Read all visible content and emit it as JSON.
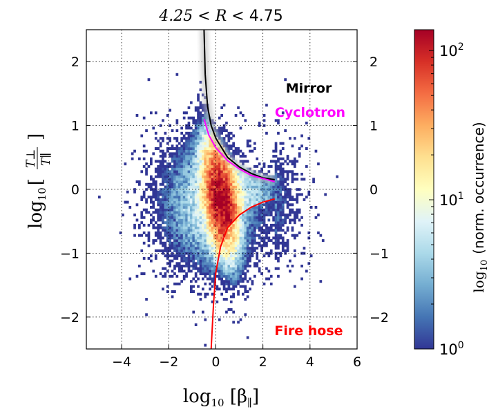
{
  "chart_data": {
    "type": "heatmap",
    "title_prefix": "4.25 < R <",
    "title_value": "4.75",
    "xlabel": "log10 [β∥]",
    "xlabel_parts": {
      "fn": "log",
      "sub": "10",
      "body": "[β",
      "body_sub": "∥",
      "close": "]"
    },
    "ylabel_parts": {
      "fn": "log",
      "sub": "10",
      "num": "T⊥",
      "den": "T∥"
    },
    "xlim": [
      -5.5,
      6
    ],
    "ylim": [
      -2.5,
      2.5
    ],
    "xticks": [
      -4,
      -2,
      0,
      2,
      4,
      6
    ],
    "xtick_labels": [
      "−4",
      "−2",
      "0",
      "2",
      "4",
      "6"
    ],
    "yticks": [
      2,
      1,
      0,
      -1,
      -2
    ],
    "ytick_labels": [
      "2",
      "1",
      "0",
      "−1",
      "−2"
    ],
    "grid": true,
    "colorbar": {
      "label": "log10 (norm. occurrence)",
      "label_fn": "log",
      "label_sub": "10",
      "label_rest": "(norm. occurrence)",
      "scale": "log",
      "range": [
        1,
        138
      ],
      "ticks": [
        1,
        10,
        100
      ],
      "tick_bases": [
        "10",
        "10",
        "10"
      ],
      "tick_exps": [
        "0",
        "1",
        "2"
      ],
      "colormap": [
        "#313695",
        "#4575b4",
        "#74add1",
        "#abd9e9",
        "#e0f3f8",
        "#ffffbf",
        "#fee090",
        "#fdae61",
        "#f46d43",
        "#d73027",
        "#a50026"
      ]
    },
    "heatmap_model": {
      "bin_x": 0.1,
      "bin_y": 0.04,
      "core": {
        "center": [
          0.25,
          -0.2
        ],
        "peak": 140,
        "axis": [
          0.55,
          -0.83
        ],
        "sigma_along": 0.5,
        "sigma_perp": 0.3
      },
      "halo": {
        "center": [
          0.25,
          -0.2
        ],
        "peak": 8,
        "sigma_x": 1.3,
        "sigma_y": 0.55
      },
      "seed": 7
    },
    "curves": [
      {
        "name": "Mirror",
        "color": "#000000",
        "x": [
          -0.5,
          -0.45,
          -0.35,
          -0.2,
          0,
          0.5,
          1,
          1.5,
          2,
          2.5
        ],
        "y": [
          2.5,
          1.8,
          1.3,
          1.0,
          0.8,
          0.5,
          0.35,
          0.25,
          0.18,
          0.15
        ]
      },
      {
        "name": "Cyclotron",
        "color": "#ff00ff",
        "x": [
          -0.5,
          -0.3,
          0,
          0.5,
          1,
          1.5,
          2,
          2.5
        ],
        "y": [
          1.1,
          0.85,
          0.65,
          0.45,
          0.32,
          0.22,
          0.17,
          0.12
        ]
      },
      {
        "name": "Fire hose",
        "color": "#ff0000",
        "x": [
          -0.2,
          -0.1,
          0,
          0.2,
          0.5,
          1,
          1.5,
          2,
          2.5
        ],
        "y": [
          -2.5,
          -1.8,
          -1.3,
          -0.9,
          -0.6,
          -0.4,
          -0.28,
          -0.2,
          -0.15
        ]
      }
    ],
    "annotations": [
      {
        "text": "Mirror",
        "color": "#000000"
      },
      {
        "text": "Cyclotron",
        "color": "#ff00ff"
      },
      {
        "text": "Fire hose",
        "color": "#ff0000"
      }
    ]
  }
}
